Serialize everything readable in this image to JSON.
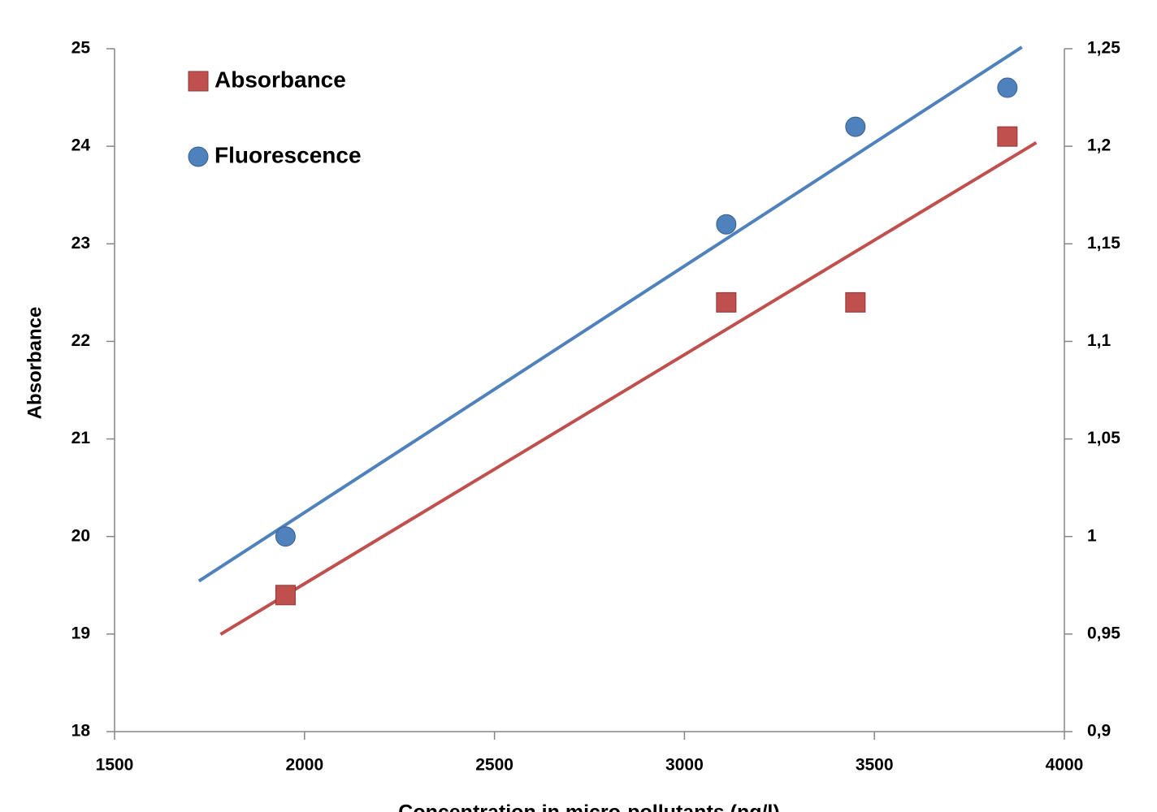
{
  "chart_data": {
    "type": "scatter",
    "xlabel": "Concentration in micro-pollutants (ng/l)",
    "ylabel": "Absorbance",
    "x": [
      1950,
      3110,
      3450,
      3850
    ],
    "series": [
      {
        "name": "Absorbance",
        "color": "#c0504d",
        "marker": "square",
        "values": [
          19.4,
          22.4,
          22.4,
          24.1
        ]
      },
      {
        "name": "Fluorescence",
        "color": "#4f81bd",
        "marker": "circle",
        "axis": "y2",
        "values": [
          1.0,
          1.16,
          1.21,
          1.23
        ]
      }
    ],
    "xlim": [
      1500,
      4000
    ],
    "xticks": [
      1500,
      2000,
      2500,
      3000,
      3500,
      4000
    ],
    "ylim": [
      18,
      25
    ],
    "yticks": [
      18,
      19,
      20,
      21,
      22,
      23,
      24,
      25
    ],
    "y2lim": [
      0.9,
      1.25
    ],
    "y2ticks": [
      {
        "value": 0.9,
        "label": "0,9"
      },
      {
        "value": 0.95,
        "label": "0,95"
      },
      1,
      {
        "value": 1.05,
        "label": "1,05"
      },
      {
        "value": 1.1,
        "label": "1,1"
      },
      {
        "value": 1.15,
        "label": "1,15"
      },
      {
        "value": 1.2,
        "label": "1,2"
      },
      {
        "value": 1.25,
        "label": "1,25"
      }
    ],
    "trendline": "linear",
    "legend": "top-left"
  }
}
